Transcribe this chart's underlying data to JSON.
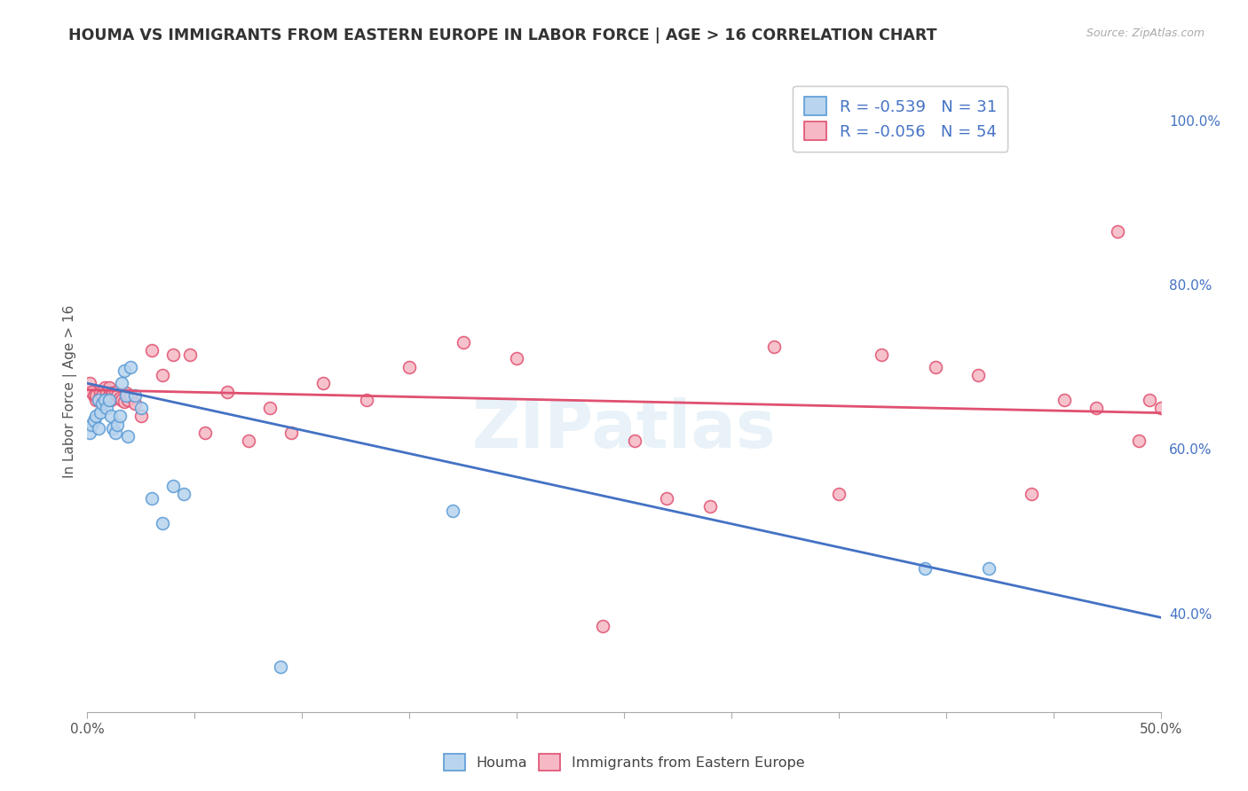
{
  "title": "HOUMA VS IMMIGRANTS FROM EASTERN EUROPE IN LABOR FORCE | AGE > 16 CORRELATION CHART",
  "source": "Source: ZipAtlas.com",
  "ylabel": "In Labor Force | Age > 16",
  "xlim": [
    0.0,
    0.5
  ],
  "ylim": [
    0.28,
    1.06
  ],
  "xticks": [
    0.0,
    0.05,
    0.1,
    0.15,
    0.2,
    0.25,
    0.3,
    0.35,
    0.4,
    0.45,
    0.5
  ],
  "xticklabels": [
    "0.0%",
    "",
    "",
    "",
    "",
    "",
    "",
    "",
    "",
    "",
    "50.0%"
  ],
  "yticks_right": [
    0.4,
    0.6,
    0.8,
    1.0
  ],
  "yticklabels_right": [
    "40.0%",
    "60.0%",
    "80.0%",
    "100.0%"
  ],
  "bg_color": "#ffffff",
  "grid_color": "#d5d5d5",
  "houma_color": "#b8d4ee",
  "immigrants_color": "#f5b8c4",
  "houma_edge_color": "#5b9bd5",
  "immigrants_edge_color": "#e05070",
  "houma_line_color": "#4472c4",
  "immigrants_line_color": "#e05070",
  "R_houma": -0.539,
  "N_houma": 31,
  "R_immigrants": -0.056,
  "N_immigrants": 54,
  "legend_text_color": "#4472c4",
  "houma_x": [
    0.001,
    0.002,
    0.003,
    0.004,
    0.005,
    0.005,
    0.006,
    0.007,
    0.008,
    0.009,
    0.01,
    0.011,
    0.012,
    0.013,
    0.014,
    0.015,
    0.016,
    0.017,
    0.018,
    0.019,
    0.02,
    0.022,
    0.025,
    0.03,
    0.035,
    0.04,
    0.045,
    0.09,
    0.17,
    0.39,
    0.42
  ],
  "houma_y": [
    0.62,
    0.63,
    0.635,
    0.64,
    0.625,
    0.66,
    0.645,
    0.655,
    0.66,
    0.65,
    0.66,
    0.64,
    0.625,
    0.62,
    0.63,
    0.64,
    0.68,
    0.695,
    0.665,
    0.615,
    0.7,
    0.665,
    0.65,
    0.54,
    0.51,
    0.555,
    0.545,
    0.335,
    0.525,
    0.455,
    0.455
  ],
  "immigrants_x": [
    0.001,
    0.002,
    0.003,
    0.004,
    0.004,
    0.005,
    0.006,
    0.007,
    0.008,
    0.009,
    0.01,
    0.01,
    0.011,
    0.012,
    0.013,
    0.014,
    0.015,
    0.016,
    0.017,
    0.018,
    0.019,
    0.02,
    0.022,
    0.025,
    0.03,
    0.035,
    0.04,
    0.048,
    0.055,
    0.065,
    0.075,
    0.085,
    0.095,
    0.11,
    0.13,
    0.15,
    0.175,
    0.2,
    0.24,
    0.27,
    0.29,
    0.32,
    0.35,
    0.37,
    0.395,
    0.415,
    0.44,
    0.455,
    0.47,
    0.48,
    0.49,
    0.495,
    0.5,
    0.255
  ],
  "immigrants_y": [
    0.68,
    0.67,
    0.665,
    0.66,
    0.665,
    0.66,
    0.67,
    0.665,
    0.675,
    0.67,
    0.665,
    0.675,
    0.66,
    0.668,
    0.67,
    0.665,
    0.662,
    0.66,
    0.658,
    0.668,
    0.66,
    0.665,
    0.656,
    0.64,
    0.72,
    0.69,
    0.715,
    0.715,
    0.62,
    0.67,
    0.61,
    0.65,
    0.62,
    0.68,
    0.66,
    0.7,
    0.73,
    0.71,
    0.385,
    0.54,
    0.53,
    0.725,
    0.545,
    0.715,
    0.7,
    0.69,
    0.545,
    0.66,
    0.65,
    0.865,
    0.61,
    0.66,
    0.65,
    0.61
  ],
  "houma_trendline_x": [
    0.0,
    0.5
  ],
  "houma_trendline_y": [
    0.68,
    0.395
  ],
  "immigrants_trendline_x": [
    0.0,
    0.5
  ],
  "immigrants_trendline_y": [
    0.672,
    0.644
  ],
  "marker_size": 100,
  "marker_lw": 1.2
}
